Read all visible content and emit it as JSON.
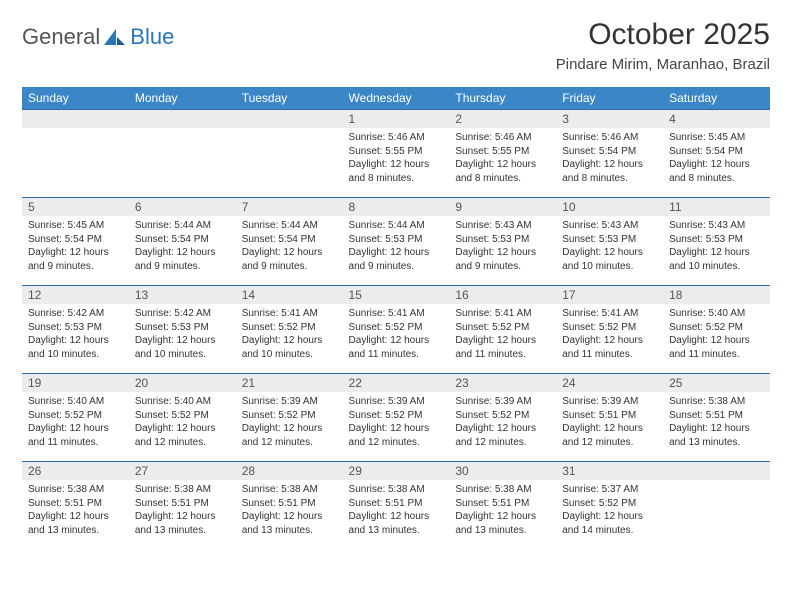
{
  "logo": {
    "word1": "General",
    "word2": "Blue"
  },
  "title": "October 2025",
  "location": "Pindare Mirim, Maranhao, Brazil",
  "colors": {
    "header_bg": "#3b86c6",
    "header_text": "#ffffff",
    "daynum_bg": "#ececec",
    "border": "#2c6aa3",
    "logo_blue": "#2976b9",
    "logo_gray": "#555555"
  },
  "weekdays": [
    "Sunday",
    "Monday",
    "Tuesday",
    "Wednesday",
    "Thursday",
    "Friday",
    "Saturday"
  ],
  "weeks": [
    [
      null,
      null,
      null,
      {
        "n": "1",
        "sr": "5:46 AM",
        "ss": "5:55 PM",
        "d": "12 hours and 8 minutes."
      },
      {
        "n": "2",
        "sr": "5:46 AM",
        "ss": "5:55 PM",
        "d": "12 hours and 8 minutes."
      },
      {
        "n": "3",
        "sr": "5:46 AM",
        "ss": "5:54 PM",
        "d": "12 hours and 8 minutes."
      },
      {
        "n": "4",
        "sr": "5:45 AM",
        "ss": "5:54 PM",
        "d": "12 hours and 8 minutes."
      }
    ],
    [
      {
        "n": "5",
        "sr": "5:45 AM",
        "ss": "5:54 PM",
        "d": "12 hours and 9 minutes."
      },
      {
        "n": "6",
        "sr": "5:44 AM",
        "ss": "5:54 PM",
        "d": "12 hours and 9 minutes."
      },
      {
        "n": "7",
        "sr": "5:44 AM",
        "ss": "5:54 PM",
        "d": "12 hours and 9 minutes."
      },
      {
        "n": "8",
        "sr": "5:44 AM",
        "ss": "5:53 PM",
        "d": "12 hours and 9 minutes."
      },
      {
        "n": "9",
        "sr": "5:43 AM",
        "ss": "5:53 PM",
        "d": "12 hours and 9 minutes."
      },
      {
        "n": "10",
        "sr": "5:43 AM",
        "ss": "5:53 PM",
        "d": "12 hours and 10 minutes."
      },
      {
        "n": "11",
        "sr": "5:43 AM",
        "ss": "5:53 PM",
        "d": "12 hours and 10 minutes."
      }
    ],
    [
      {
        "n": "12",
        "sr": "5:42 AM",
        "ss": "5:53 PM",
        "d": "12 hours and 10 minutes."
      },
      {
        "n": "13",
        "sr": "5:42 AM",
        "ss": "5:53 PM",
        "d": "12 hours and 10 minutes."
      },
      {
        "n": "14",
        "sr": "5:41 AM",
        "ss": "5:52 PM",
        "d": "12 hours and 10 minutes."
      },
      {
        "n": "15",
        "sr": "5:41 AM",
        "ss": "5:52 PM",
        "d": "12 hours and 11 minutes."
      },
      {
        "n": "16",
        "sr": "5:41 AM",
        "ss": "5:52 PM",
        "d": "12 hours and 11 minutes."
      },
      {
        "n": "17",
        "sr": "5:41 AM",
        "ss": "5:52 PM",
        "d": "12 hours and 11 minutes."
      },
      {
        "n": "18",
        "sr": "5:40 AM",
        "ss": "5:52 PM",
        "d": "12 hours and 11 minutes."
      }
    ],
    [
      {
        "n": "19",
        "sr": "5:40 AM",
        "ss": "5:52 PM",
        "d": "12 hours and 11 minutes."
      },
      {
        "n": "20",
        "sr": "5:40 AM",
        "ss": "5:52 PM",
        "d": "12 hours and 12 minutes."
      },
      {
        "n": "21",
        "sr": "5:39 AM",
        "ss": "5:52 PM",
        "d": "12 hours and 12 minutes."
      },
      {
        "n": "22",
        "sr": "5:39 AM",
        "ss": "5:52 PM",
        "d": "12 hours and 12 minutes."
      },
      {
        "n": "23",
        "sr": "5:39 AM",
        "ss": "5:52 PM",
        "d": "12 hours and 12 minutes."
      },
      {
        "n": "24",
        "sr": "5:39 AM",
        "ss": "5:51 PM",
        "d": "12 hours and 12 minutes."
      },
      {
        "n": "25",
        "sr": "5:38 AM",
        "ss": "5:51 PM",
        "d": "12 hours and 13 minutes."
      }
    ],
    [
      {
        "n": "26",
        "sr": "5:38 AM",
        "ss": "5:51 PM",
        "d": "12 hours and 13 minutes."
      },
      {
        "n": "27",
        "sr": "5:38 AM",
        "ss": "5:51 PM",
        "d": "12 hours and 13 minutes."
      },
      {
        "n": "28",
        "sr": "5:38 AM",
        "ss": "5:51 PM",
        "d": "12 hours and 13 minutes."
      },
      {
        "n": "29",
        "sr": "5:38 AM",
        "ss": "5:51 PM",
        "d": "12 hours and 13 minutes."
      },
      {
        "n": "30",
        "sr": "5:38 AM",
        "ss": "5:51 PM",
        "d": "12 hours and 13 minutes."
      },
      {
        "n": "31",
        "sr": "5:37 AM",
        "ss": "5:52 PM",
        "d": "12 hours and 14 minutes."
      },
      null
    ]
  ],
  "labels": {
    "sunrise": "Sunrise:",
    "sunset": "Sunset:",
    "daylight": "Daylight:"
  }
}
